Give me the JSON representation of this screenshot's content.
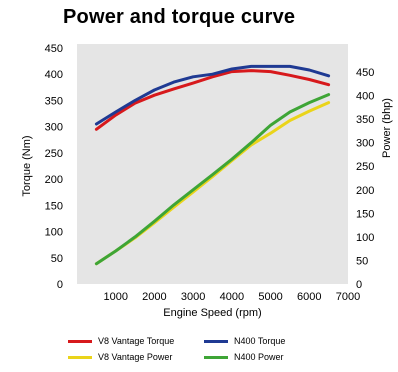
{
  "chart_data": {
    "type": "line",
    "title": "Power and torque curve",
    "xlabel": "Engine Speed (rpm)",
    "ylabel_left": "Torque (Nm)",
    "ylabel_right": "Power (bhp)",
    "xlim": [
      0,
      7000
    ],
    "ylim_left": [
      0,
      450
    ],
    "ylim_right": [
      0,
      500
    ],
    "x_ticks": [
      1000,
      2000,
      3000,
      4000,
      5000,
      6000,
      7000
    ],
    "y_ticks_left": [
      0,
      50,
      100,
      150,
      200,
      250,
      300,
      350,
      400,
      450
    ],
    "y_ticks_right": [
      0,
      50,
      100,
      150,
      200,
      250,
      300,
      350,
      400,
      450
    ],
    "grid": false,
    "legend_position": "bottom",
    "series": [
      {
        "name": "V8 Vantage Torque",
        "axis": "left",
        "color": "#d7191c",
        "x": [
          500,
          1000,
          1500,
          2000,
          2500,
          3000,
          3500,
          4000,
          4500,
          5000,
          5500,
          6000,
          6500
        ],
        "y": [
          295,
          322,
          345,
          360,
          372,
          383,
          395,
          405,
          407,
          405,
          398,
          390,
          380
        ]
      },
      {
        "name": "N400 Torque",
        "axis": "left",
        "color": "#1f3a93",
        "x": [
          500,
          1000,
          1500,
          2000,
          2500,
          3000,
          3500,
          4000,
          4500,
          5000,
          5500,
          6000,
          6500
        ],
        "y": [
          305,
          328,
          350,
          370,
          385,
          395,
          400,
          410,
          415,
          415,
          415,
          408,
          397
        ]
      },
      {
        "name": "V8 Vantage Power",
        "axis": "right",
        "color": "#ead41a",
        "x": [
          500,
          1000,
          1500,
          2000,
          2500,
          3000,
          3500,
          4000,
          4500,
          5000,
          5500,
          6000,
          6500
        ],
        "y": [
          43,
          70,
          98,
          130,
          163,
          195,
          228,
          262,
          295,
          320,
          347,
          367,
          385
        ]
      },
      {
        "name": "N400 Power",
        "axis": "right",
        "color": "#3ea536",
        "x": [
          500,
          1000,
          1500,
          2000,
          2500,
          3000,
          3500,
          4000,
          4500,
          5000,
          5500,
          6000,
          6500
        ],
        "y": [
          43,
          70,
          100,
          133,
          168,
          200,
          232,
          265,
          300,
          337,
          365,
          385,
          402
        ]
      }
    ]
  }
}
